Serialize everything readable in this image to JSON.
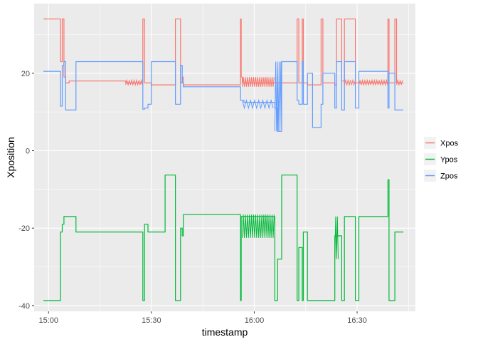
{
  "chart_data": {
    "type": "line",
    "title": "",
    "xlabel": "timestamp",
    "ylabel": "Xposition",
    "x_unit": "minutes since 15:00",
    "xlim": [
      -4.2,
      107
    ],
    "ylim": [
      -41.5,
      38
    ],
    "x_ticks": [
      {
        "value": 0,
        "label": "15:00"
      },
      {
        "value": 30,
        "label": "15:30"
      },
      {
        "value": 60,
        "label": "16:00"
      },
      {
        "value": 90,
        "label": "16:30"
      }
    ],
    "y_ticks": [
      {
        "value": -40,
        "label": "-40"
      },
      {
        "value": -20,
        "label": "-20"
      },
      {
        "value": 0,
        "label": "0"
      },
      {
        "value": 20,
        "label": "20"
      }
    ],
    "background_color": "#EBEBEB",
    "grid_color": "#FFFFFF",
    "legend_position": "right",
    "series": [
      {
        "name": "Xpos",
        "color": "#F8766D",
        "x": [
          -1.5,
          3.5,
          3.5,
          4.0,
          4.0,
          4.5,
          4.5,
          5.0,
          5.0,
          5.5,
          5.5,
          6.0,
          6.0,
          8,
          8,
          22.5,
          22.5,
          27.5,
          27.5,
          28,
          28,
          29,
          29,
          30,
          30,
          37,
          37,
          38.5,
          38.5,
          39,
          39,
          39.3,
          39.3,
          44,
          44,
          56,
          56,
          56.2,
          56.2,
          56.5,
          56.5,
          57,
          57,
          66,
          66,
          72.5,
          72.5,
          73,
          73,
          74,
          74,
          74.3,
          74.3,
          75.5,
          75.5,
          77,
          77,
          79.5,
          79.5,
          80,
          80,
          83.5,
          83.5,
          84,
          84,
          85.5,
          85.5,
          86.3,
          86.3,
          89.5,
          89.5,
          90.5,
          90.5,
          99,
          99,
          99.3,
          99.3,
          101,
          101,
          101.5,
          101.5,
          103.5
        ],
        "y": [
          34,
          34,
          23,
          23,
          34,
          34,
          19,
          19,
          17.5,
          17.5,
          17.5,
          17.5,
          18,
          18,
          18,
          18,
          17.5,
          17.5,
          34,
          34,
          17.5,
          17.5,
          17.5,
          17.5,
          17,
          17,
          34,
          34,
          17.5,
          17.5,
          19,
          19,
          17,
          17,
          17,
          17,
          34,
          34,
          19,
          19,
          17.5,
          17.5,
          17.5,
          17.5,
          17.5,
          17.5,
          34,
          34,
          17.5,
          17.5,
          34,
          34,
          17.5,
          17.5,
          17,
          17,
          17,
          17,
          34,
          34,
          17.5,
          17.5,
          17,
          17,
          34,
          34,
          18,
          18,
          34,
          34,
          17.5,
          17.5,
          17.5,
          17.5,
          34,
          34,
          17.5,
          17.5,
          34,
          34,
          17.5,
          17.5
        ]
      },
      {
        "name": "Ypos",
        "color": "#00BA38",
        "x": [
          -1.5,
          3.5,
          3.5,
          4.0,
          4.0,
          4.5,
          4.5,
          5.0,
          5.0,
          5.5,
          5.5,
          8,
          8,
          22.5,
          22.5,
          27.5,
          27.5,
          28,
          28,
          29,
          29,
          30,
          30,
          34,
          34,
          37,
          37,
          38.5,
          38.5,
          39,
          39,
          39.3,
          39.3,
          44,
          44,
          56,
          56,
          56.2,
          56.2,
          57,
          57,
          66,
          66,
          66.8,
          66.8,
          68,
          68,
          72.5,
          72.5,
          73,
          73,
          74,
          74,
          74.3,
          74.3,
          75.5,
          75.5,
          83.5,
          83.5,
          84,
          84,
          85.5,
          85.5,
          86.3,
          86.3,
          89.5,
          89.5,
          90.5,
          90.5,
          99,
          99,
          99.3,
          99.3,
          101,
          101,
          101.5,
          101.5,
          103.5
        ],
        "y": [
          -38.7,
          -38.7,
          -21,
          -21,
          -19,
          -19,
          -17,
          -17,
          -17,
          -17,
          -17,
          -17,
          -21,
          -21,
          -21,
          -21,
          -38.7,
          -38.7,
          -19,
          -19,
          -21,
          -21,
          -21,
          -21,
          -6.3,
          -6.3,
          -38.7,
          -38.7,
          -20,
          -20,
          -22,
          -22,
          -16.5,
          -16.5,
          -16.5,
          -16.5,
          -38.7,
          -38.7,
          -17,
          -17,
          -17,
          -17,
          -38.7,
          -38.7,
          -28,
          -28,
          -6.3,
          -6.3,
          -38.7,
          -38.7,
          -25,
          -25,
          -38.7,
          -38.7,
          -21,
          -21,
          -38.7,
          -38.7,
          -22,
          -22,
          -22,
          -22,
          -38.7,
          -38.7,
          -17,
          -17,
          -38.7,
          -38.7,
          -17,
          -17,
          -7.5,
          -7.5,
          -38.7,
          -38.7,
          -21,
          -21,
          -21,
          -21
        ]
      },
      {
        "name": "Zpos",
        "color": "#619CFF",
        "x": [
          -1.5,
          3.5,
          3.5,
          4.0,
          4.0,
          4.5,
          4.5,
          5.0,
          5.0,
          5.5,
          5.5,
          8,
          8,
          22.5,
          22.5,
          27.5,
          27.5,
          28,
          28,
          29,
          29,
          30,
          30,
          37,
          37,
          38.5,
          38.5,
          39,
          39,
          39.3,
          39.3,
          44,
          44,
          56,
          56,
          56.2,
          56.2,
          57,
          57,
          66,
          66,
          66.8,
          66.8,
          68,
          68,
          72.5,
          72.5,
          73,
          73,
          74,
          74,
          74.3,
          74.3,
          75.5,
          75.5,
          77,
          77,
          79.5,
          79.5,
          80,
          80,
          83.5,
          83.5,
          84,
          84,
          85.5,
          85.5,
          86.3,
          86.3,
          89.5,
          89.5,
          90.5,
          90.5,
          99,
          99,
          99.3,
          99.3,
          101,
          101,
          101.5,
          101.5,
          103.5
        ],
        "y": [
          20.5,
          20.5,
          11.5,
          11.5,
          22,
          22,
          23,
          23,
          10.5,
          10.5,
          10.5,
          10.5,
          23,
          23,
          23,
          23,
          10.7,
          10.7,
          11,
          11,
          12,
          12,
          23,
          23,
          12,
          12,
          22,
          22,
          17.5,
          17.5,
          16.5,
          16.5,
          16.5,
          16.5,
          13,
          13,
          13,
          13,
          12.5,
          12.5,
          11,
          11,
          5,
          5,
          23,
          23,
          13,
          13,
          12,
          12,
          23,
          23,
          12,
          12,
          20,
          20,
          6,
          6,
          12,
          12,
          20,
          20,
          11,
          11,
          23,
          23,
          10.5,
          10.5,
          23,
          23,
          11,
          11,
          20.5,
          20.5,
          11,
          11,
          20,
          20,
          10.5,
          10.5,
          10.5,
          10.5
        ]
      }
    ]
  }
}
